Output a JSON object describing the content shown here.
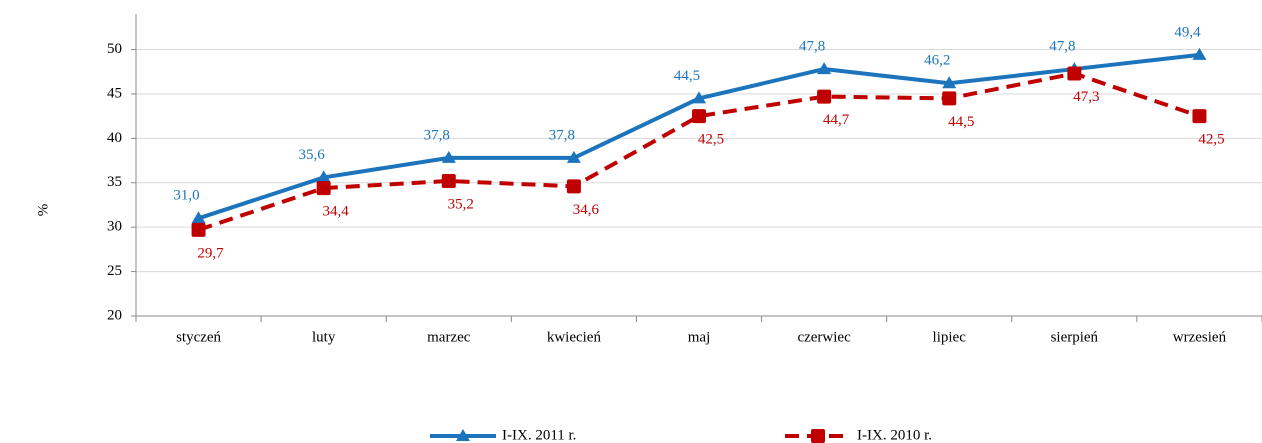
{
  "chart_data": {
    "type": "line",
    "y_label": "%",
    "categories": [
      "styczeń",
      "luty",
      "marzec",
      "kwiecień",
      "maj",
      "czerwiec",
      "lipiec",
      "sierpień",
      "wrzesień"
    ],
    "series": [
      {
        "name": "I-IX. 2011 r.",
        "color": "#1c75bc",
        "marker": "triangle",
        "dash": false,
        "values": [
          31.0,
          35.6,
          37.8,
          37.8,
          44.5,
          47.8,
          46.2,
          47.8,
          49.4
        ],
        "value_labels": [
          "31,0",
          "35,6",
          "37,8",
          "37,8",
          "44,5",
          "47,8",
          "46,2",
          "47,8",
          "49,4"
        ]
      },
      {
        "name": "I-IX. 2010 r.",
        "color": "#c00000",
        "marker": "square",
        "dash": true,
        "values": [
          29.7,
          34.4,
          35.2,
          34.6,
          42.5,
          44.7,
          44.5,
          47.3,
          42.5
        ],
        "value_labels": [
          "29,7",
          "34,4",
          "35,2",
          "34,6",
          "42,5",
          "44,7",
          "44,5",
          "47,3",
          "42,5"
        ]
      }
    ],
    "ylim": [
      20,
      54
    ],
    "yticks": [
      20,
      25,
      30,
      35,
      40,
      45,
      50
    ],
    "grid": true,
    "legend": "bottom"
  }
}
